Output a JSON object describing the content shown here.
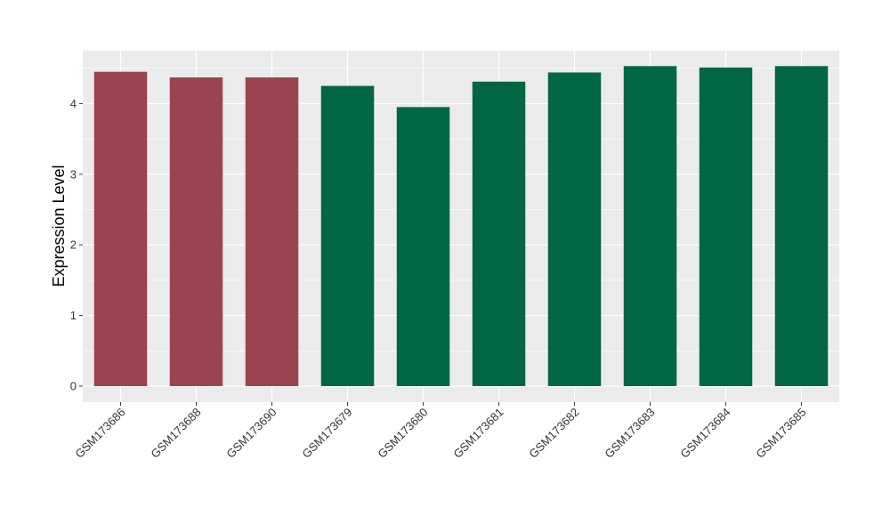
{
  "chart_data": {
    "type": "bar",
    "title": "",
    "xlabel": "",
    "ylabel": "Expression Level",
    "ylim": [
      -0.22,
      4.77
    ],
    "yticks": [
      0,
      1,
      2,
      3,
      4
    ],
    "ytick_labels": [
      "0",
      "1",
      "2",
      "3",
      "4"
    ],
    "categories": [
      "GSM173686",
      "GSM173688",
      "GSM173690",
      "GSM173679",
      "GSM173680",
      "GSM173681",
      "GSM173682",
      "GSM173683",
      "GSM173684",
      "GSM173685"
    ],
    "values": [
      4.45,
      4.37,
      4.37,
      4.25,
      3.95,
      4.31,
      4.44,
      4.53,
      4.51,
      4.53
    ],
    "group_colors": [
      "#99444f",
      "#99444f",
      "#99444f",
      "#006643",
      "#006643",
      "#006643",
      "#006643",
      "#006643",
      "#006643",
      "#006643"
    ],
    "panel_background": "#ebebeb",
    "grid_color": "#ffffff",
    "grid": true,
    "legend": "none"
  }
}
